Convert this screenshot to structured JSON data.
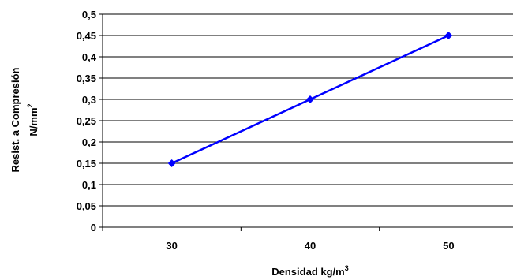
{
  "chart_data": {
    "type": "line",
    "xlabel": "Densidad kg/m",
    "xlabel_sup": "3",
    "ylabel_line1": "Resist. a Compresión",
    "ylabel_line2": "N/mm",
    "ylabel_sup": "2",
    "categories": [
      "30",
      "40",
      "50"
    ],
    "series": [
      {
        "values": [
          0.15,
          0.3,
          0.45
        ]
      }
    ],
    "ylim": [
      0,
      0.5
    ],
    "y_ticks": [
      "0",
      "0,05",
      "0,1",
      "0,15",
      "0,2",
      "0,25",
      "0,3",
      "0,35",
      "0,4",
      "0,45",
      "0,5"
    ],
    "grid": "horizontal",
    "legend": "none",
    "colors": {
      "line": "#0000ff",
      "marker": "#0000ff",
      "grid": "#000000"
    }
  }
}
